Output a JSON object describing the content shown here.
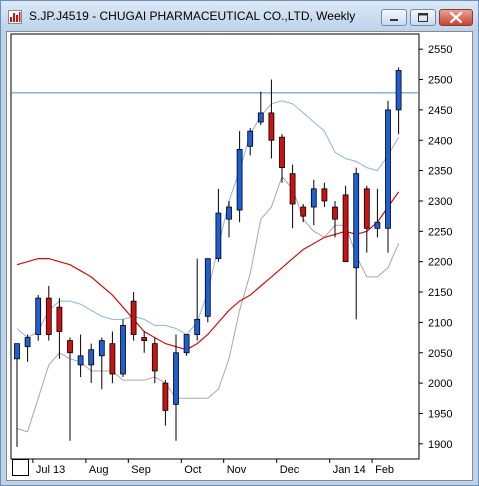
{
  "window": {
    "title": "S.JP.J4519 - CHUGAI PHARMACEUTICAL CO.,LTD, Weekly",
    "icon": "chart-app-icon",
    "buttons": [
      "minimize-icon",
      "maximize-icon",
      "close-icon"
    ]
  },
  "chart_data": {
    "type": "candlestick",
    "title": "S.JP.J4519 - CHUGAI PHARMACEUTICAL CO.,LTD, Weekly",
    "timeframe": "Weekly",
    "ylim": [
      1875,
      2575
    ],
    "y_ticks": [
      1900,
      1950,
      2000,
      2050,
      2100,
      2150,
      2200,
      2250,
      2300,
      2350,
      2400,
      2450,
      2500,
      2550
    ],
    "x_labels": [
      {
        "label": "Jul 13",
        "week_index": 2
      },
      {
        "label": "Aug",
        "week_index": 7
      },
      {
        "label": "Sep",
        "week_index": 11
      },
      {
        "label": "Oct",
        "week_index": 16
      },
      {
        "label": "Nov",
        "week_index": 20
      },
      {
        "label": "Dec",
        "week_index": 25
      },
      {
        "label": "Jan 14",
        "week_index": 30
      },
      {
        "label": "Feb",
        "week_index": 34
      }
    ],
    "grid": false,
    "horizontal_line": {
      "value": 2478,
      "color": "#4a8fb0"
    },
    "colors": {
      "up": "#1f5fd6",
      "down": "#cc1111",
      "sma": "#cc1111",
      "band_upper": "#8fb4dc",
      "band_lower": "#a8a8a8"
    },
    "candles": [
      {
        "open": 2040,
        "high": 2065,
        "low": 1895,
        "close": 2065
      },
      {
        "open": 2060,
        "high": 2080,
        "low": 2035,
        "close": 2075
      },
      {
        "open": 2080,
        "high": 2145,
        "low": 2070,
        "close": 2140
      },
      {
        "open": 2140,
        "high": 2160,
        "low": 2070,
        "close": 2080
      },
      {
        "open": 2125,
        "high": 2140,
        "low": 2040,
        "close": 2085
      },
      {
        "open": 2070,
        "high": 2075,
        "low": 1905,
        "close": 2050
      },
      {
        "open": 2030,
        "high": 2080,
        "low": 2010,
        "close": 2045
      },
      {
        "open": 2030,
        "high": 2065,
        "low": 2000,
        "close": 2055
      },
      {
        "open": 2045,
        "high": 2075,
        "low": 1990,
        "close": 2070
      },
      {
        "open": 2065,
        "high": 2085,
        "low": 2000,
        "close": 2015
      },
      {
        "open": 2015,
        "high": 2105,
        "low": 2010,
        "close": 2095
      },
      {
        "open": 2135,
        "high": 2150,
        "low": 2070,
        "close": 2080
      },
      {
        "open": 2075,
        "high": 2085,
        "low": 2050,
        "close": 2070
      },
      {
        "open": 2065,
        "high": 2075,
        "low": 2000,
        "close": 2020
      },
      {
        "open": 2000,
        "high": 2005,
        "low": 1930,
        "close": 1955
      },
      {
        "open": 1965,
        "high": 2080,
        "low": 1905,
        "close": 2050
      },
      {
        "open": 2050,
        "high": 2080,
        "low": 2045,
        "close": 2080
      },
      {
        "open": 2080,
        "high": 2205,
        "low": 2070,
        "close": 2105
      },
      {
        "open": 2110,
        "high": 2205,
        "low": 2100,
        "close": 2205
      },
      {
        "open": 2205,
        "high": 2320,
        "low": 2200,
        "close": 2280
      },
      {
        "open": 2270,
        "high": 2300,
        "low": 2240,
        "close": 2290
      },
      {
        "open": 2285,
        "high": 2415,
        "low": 2265,
        "close": 2385
      },
      {
        "open": 2390,
        "high": 2420,
        "low": 2375,
        "close": 2415
      },
      {
        "open": 2430,
        "high": 2480,
        "low": 2425,
        "close": 2445
      },
      {
        "open": 2445,
        "high": 2500,
        "low": 2370,
        "close": 2400
      },
      {
        "open": 2405,
        "high": 2410,
        "low": 2330,
        "close": 2355
      },
      {
        "open": 2345,
        "high": 2360,
        "low": 2255,
        "close": 2295
      },
      {
        "open": 2290,
        "high": 2295,
        "low": 2265,
        "close": 2275
      },
      {
        "open": 2290,
        "high": 2335,
        "low": 2260,
        "close": 2320
      },
      {
        "open": 2320,
        "high": 2330,
        "low": 2290,
        "close": 2300
      },
      {
        "open": 2290,
        "high": 2300,
        "low": 2240,
        "close": 2270
      },
      {
        "open": 2310,
        "high": 2325,
        "low": 2200,
        "close": 2200
      },
      {
        "open": 2190,
        "high": 2355,
        "low": 2105,
        "close": 2345
      },
      {
        "open": 2320,
        "high": 2325,
        "low": 2215,
        "close": 2255
      },
      {
        "open": 2255,
        "high": 2320,
        "low": 2240,
        "close": 2265
      },
      {
        "open": 2255,
        "high": 2465,
        "low": 2215,
        "close": 2450
      },
      {
        "open": 2450,
        "high": 2520,
        "low": 2410,
        "close": 2515
      }
    ],
    "sma": [
      2195,
      2200,
      2205,
      2205,
      2200,
      2195,
      2185,
      2175,
      2160,
      2145,
      2125,
      2105,
      2085,
      2075,
      2065,
      2060,
      2055,
      2065,
      2080,
      2100,
      2120,
      2135,
      2145,
      2160,
      2175,
      2190,
      2205,
      2220,
      2230,
      2240,
      2245,
      2250,
      2245,
      2250,
      2265,
      2290,
      2315
    ],
    "band_upper": [
      2090,
      2075,
      2085,
      2120,
      2135,
      2135,
      2130,
      2120,
      2110,
      2105,
      2105,
      2110,
      2105,
      2095,
      2095,
      2090,
      2080,
      2100,
      2150,
      2225,
      2300,
      2350,
      2410,
      2440,
      2460,
      2465,
      2460,
      2445,
      2430,
      2415,
      2380,
      2370,
      2365,
      2355,
      2350,
      2375,
      2405
    ],
    "band_lower": [
      1925,
      1920,
      1975,
      2030,
      2050,
      2040,
      2035,
      2020,
      2020,
      2020,
      2005,
      2005,
      2005,
      2010,
      2000,
      1975,
      1975,
      1975,
      1975,
      1990,
      2040,
      2120,
      2180,
      2270,
      2290,
      2340,
      2320,
      2270,
      2250,
      2240,
      2260,
      2260,
      2210,
      2175,
      2175,
      2190,
      2230
    ]
  }
}
